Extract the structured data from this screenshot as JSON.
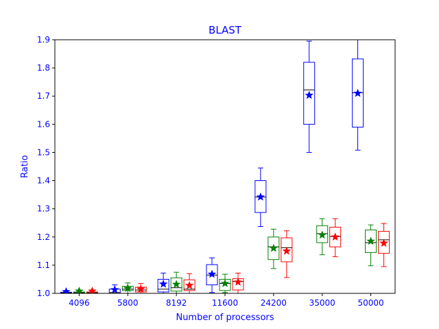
{
  "chart_data": {
    "type": "box",
    "title": "BLAST",
    "xlabel": "Number of processors",
    "ylabel": "Ratio",
    "categories": [
      "4096",
      "5800",
      "8192",
      "11600",
      "24200",
      "35000",
      "50000"
    ],
    "ylim": [
      1.0,
      1.9
    ],
    "yticks": [
      1.0,
      1.1,
      1.2,
      1.3,
      1.4,
      1.5,
      1.6,
      1.7,
      1.8,
      1.9
    ],
    "grid": false,
    "legend": "none",
    "text_color": "#0000ff",
    "series": [
      {
        "color": "#0000ff",
        "boxes": [
          {
            "whislo": 1.0,
            "q1": 1.0,
            "med": 1.002,
            "q3": 1.004,
            "whishi": 1.008,
            "mean": 1.006
          },
          {
            "whislo": 1.0,
            "q1": 1.0,
            "med": 1.003,
            "q3": 1.015,
            "whishi": 1.03,
            "mean": 1.013
          },
          {
            "whislo": 1.0,
            "q1": 1.005,
            "med": 1.015,
            "q3": 1.05,
            "whishi": 1.072,
            "mean": 1.033
          },
          {
            "whislo": 1.003,
            "q1": 1.03,
            "med": 1.065,
            "q3": 1.102,
            "whishi": 1.126,
            "mean": 1.068
          },
          {
            "whislo": 1.237,
            "q1": 1.287,
            "med": 1.342,
            "q3": 1.4,
            "whishi": 1.445,
            "mean": 1.342
          },
          {
            "whislo": 1.5,
            "q1": 1.6,
            "med": 1.722,
            "q3": 1.82,
            "whishi": 1.895,
            "mean": 1.703
          },
          {
            "whislo": 1.508,
            "q1": 1.59,
            "med": 1.712,
            "q3": 1.832,
            "whishi": 1.95,
            "mean": 1.71
          }
        ]
      },
      {
        "color": "#008000",
        "boxes": [
          {
            "whislo": 1.0,
            "q1": 1.0,
            "med": 1.002,
            "q3": 1.005,
            "whishi": 1.01,
            "mean": 1.008
          },
          {
            "whislo": 1.0,
            "q1": 1.01,
            "med": 1.015,
            "q3": 1.025,
            "whishi": 1.037,
            "mean": 1.018
          },
          {
            "whislo": 1.0,
            "q1": 1.008,
            "med": 1.02,
            "q3": 1.055,
            "whishi": 1.075,
            "mean": 1.032
          },
          {
            "whislo": 1.003,
            "q1": 1.01,
            "med": 1.035,
            "q3": 1.05,
            "whishi": 1.068,
            "mean": 1.035
          },
          {
            "whislo": 1.088,
            "q1": 1.12,
            "med": 1.165,
            "q3": 1.2,
            "whishi": 1.228,
            "mean": 1.16
          },
          {
            "whislo": 1.137,
            "q1": 1.18,
            "med": 1.212,
            "q3": 1.24,
            "whishi": 1.265,
            "mean": 1.207
          },
          {
            "whislo": 1.098,
            "q1": 1.145,
            "med": 1.18,
            "q3": 1.225,
            "whishi": 1.243,
            "mean": 1.185
          }
        ]
      },
      {
        "color": "#ff0000",
        "boxes": [
          {
            "whislo": 1.0,
            "q1": 1.0,
            "med": 1.002,
            "q3": 1.005,
            "whishi": 1.01,
            "mean": 1.008
          },
          {
            "whislo": 1.0,
            "q1": 1.005,
            "med": 1.012,
            "q3": 1.022,
            "whishi": 1.035,
            "mean": 1.015
          },
          {
            "whislo": 1.0,
            "q1": 1.01,
            "med": 1.015,
            "q3": 1.048,
            "whishi": 1.07,
            "mean": 1.028
          },
          {
            "whislo": 1.0,
            "q1": 1.012,
            "med": 1.042,
            "q3": 1.052,
            "whishi": 1.072,
            "mean": 1.04
          },
          {
            "whislo": 1.056,
            "q1": 1.112,
            "med": 1.162,
            "q3": 1.197,
            "whishi": 1.222,
            "mean": 1.15
          },
          {
            "whislo": 1.13,
            "q1": 1.165,
            "med": 1.202,
            "q3": 1.235,
            "whishi": 1.265,
            "mean": 1.2
          },
          {
            "whislo": 1.095,
            "q1": 1.142,
            "med": 1.19,
            "q3": 1.22,
            "whishi": 1.248,
            "mean": 1.178
          }
        ]
      }
    ]
  }
}
